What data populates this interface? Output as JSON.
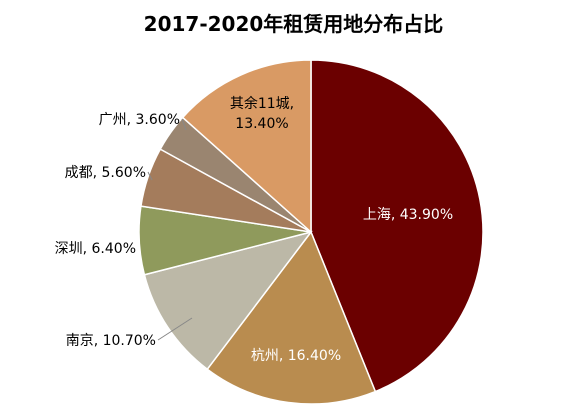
{
  "chart_data": {
    "type": "pie",
    "title": "2017-2020年租赁用地分布占比",
    "slices": [
      {
        "name": "上海",
        "value": 43.9,
        "label": "上海, 43.90%",
        "color": "#6b0000",
        "label_color": "#ffffff"
      },
      {
        "name": "杭州",
        "value": 16.4,
        "label": "杭州, 16.40%",
        "color": "#b98c4f",
        "label_color": "#ffffff"
      },
      {
        "name": "南京",
        "value": 10.7,
        "label": "南京, 10.70%",
        "color": "#bcb8a7",
        "label_color": "#000000"
      },
      {
        "name": "深圳",
        "value": 6.4,
        "label": "深圳, 6.40%",
        "color": "#8f9a5c",
        "label_color": "#000000"
      },
      {
        "name": "成都",
        "value": 5.6,
        "label": "成都, 5.60%",
        "color": "#a47c5c",
        "label_color": "#000000"
      },
      {
        "name": "广州",
        "value": 3.6,
        "label": "广州, 3.60%",
        "color": "#9a8570",
        "label_color": "#000000"
      },
      {
        "name": "其余11城",
        "value": 13.4,
        "label": "其余11城,\n13.40%",
        "color": "#d99a64",
        "label_color": "#000000"
      }
    ]
  }
}
